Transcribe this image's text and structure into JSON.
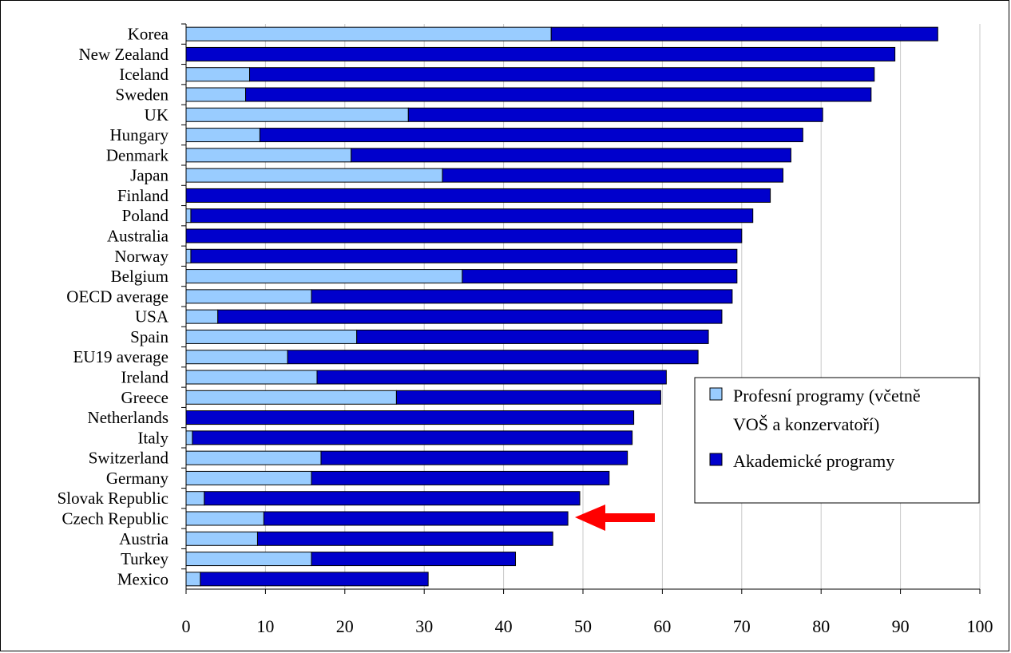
{
  "chart_data": {
    "type": "bar",
    "orientation": "horizontal",
    "stacked": true,
    "categories": [
      "Korea",
      "New Zealand",
      "Iceland",
      "Sweden",
      "UK",
      "Hungary",
      "Denmark",
      "Japan",
      "Finland",
      "Poland",
      "Australia",
      "Norway",
      "Belgium",
      "OECD average",
      "USA",
      "Spain",
      "EU19 average",
      "Ireland",
      "Greece",
      "Netherlands",
      "Italy",
      "Switzerland",
      "Germany",
      "Slovak Republic",
      "Czech Republic",
      "Austria",
      "Turkey",
      "Mexico"
    ],
    "series": [
      {
        "name": "Profesní programy (včetně VOŠ a konzervatoří)",
        "color": "#99ccff",
        "values": [
          46,
          0,
          8,
          7.5,
          28,
          9.3,
          20.8,
          32.3,
          0,
          0.6,
          0,
          0.6,
          34.8,
          15.8,
          4,
          21.5,
          12.8,
          16.5,
          26.5,
          0,
          0.8,
          17,
          15.8,
          2.3,
          9.8,
          9,
          15.8,
          1.8
        ]
      },
      {
        "name": "Akademické programy",
        "color": "#0000cc",
        "values": [
          48.7,
          89.3,
          78.7,
          78.8,
          52.2,
          68.4,
          55.4,
          42.9,
          73.6,
          70.8,
          70,
          68.8,
          34.6,
          53,
          63.5,
          44.3,
          51.7,
          44,
          33.3,
          56.4,
          55.4,
          38.6,
          37.5,
          47.3,
          38.3,
          37.2,
          25.7,
          28.7
        ]
      }
    ],
    "xlim": [
      0,
      100
    ],
    "xticks": [
      "0",
      "10",
      "20",
      "30",
      "40",
      "50",
      "60",
      "70",
      "80",
      "90",
      "100"
    ],
    "grid": true,
    "legend": {
      "position": "right",
      "lines": [
        [
          "Profesní programy (včetně",
          "VOŠ a konzervatoří)"
        ],
        [
          "Akademické programy"
        ]
      ]
    },
    "annotation": {
      "type": "arrow",
      "color": "#ff0000",
      "points_to": "Czech Republic"
    }
  }
}
